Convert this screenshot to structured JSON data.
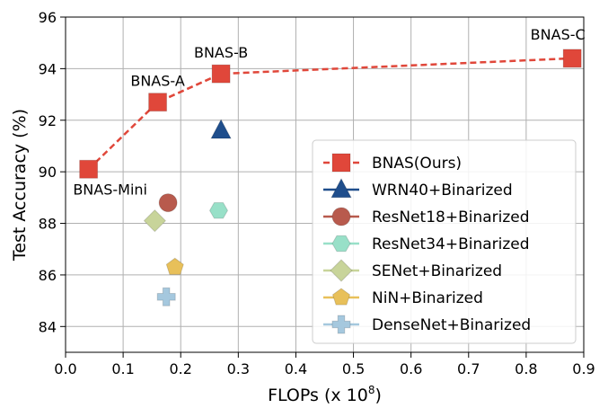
{
  "chart_data": {
    "type": "scatter",
    "xlabel_main": "FLOPs (x 10",
    "xlabel_exp": "8",
    "xlabel_tail": ")",
    "ylabel": "Test Accuracy (%)",
    "xlim": [
      0.0,
      0.9
    ],
    "ylim": [
      83.0,
      96.0
    ],
    "xticks": [
      "0.0",
      "0.1",
      "0.2",
      "0.3",
      "0.4",
      "0.5",
      "0.6",
      "0.7",
      "0.8",
      "0.9"
    ],
    "yticks": [
      "84",
      "86",
      "88",
      "90",
      "92",
      "94",
      "96"
    ],
    "grid": true,
    "legend_position": "bottom-right",
    "series": [
      {
        "name": "BNAS(Ours)",
        "marker": "square",
        "color": "#e0473a",
        "line": "dashed",
        "points": [
          {
            "x": 0.04,
            "y": 90.1,
            "label": "BNAS-Mini"
          },
          {
            "x": 0.16,
            "y": 92.7,
            "label": "BNAS-A"
          },
          {
            "x": 0.27,
            "y": 93.8,
            "label": "BNAS-B"
          },
          {
            "x": 0.88,
            "y": 94.4,
            "label": "BNAS-C"
          }
        ]
      },
      {
        "name": "WRN40+Binarized",
        "marker": "triangle",
        "color": "#1f4e8c",
        "points": [
          {
            "x": 0.27,
            "y": 91.6
          }
        ]
      },
      {
        "name": "ResNet18+Binarized",
        "marker": "circle",
        "color": "#b85a4d",
        "points": [
          {
            "x": 0.178,
            "y": 88.8
          }
        ]
      },
      {
        "name": "ResNet34+Binarized",
        "marker": "hexagon",
        "color": "#98e0c8",
        "points": [
          {
            "x": 0.266,
            "y": 88.5
          }
        ]
      },
      {
        "name": "SENet+Binarized",
        "marker": "diamond",
        "color": "#c8d49a",
        "points": [
          {
            "x": 0.155,
            "y": 88.1
          }
        ]
      },
      {
        "name": "NiN+Binarized",
        "marker": "pentagon",
        "color": "#e8c05a",
        "points": [
          {
            "x": 0.19,
            "y": 86.3
          }
        ]
      },
      {
        "name": "DenseNet+Binarized",
        "marker": "plus",
        "color": "#a5c8de",
        "points": [
          {
            "x": 0.175,
            "y": 85.15
          }
        ]
      }
    ]
  }
}
